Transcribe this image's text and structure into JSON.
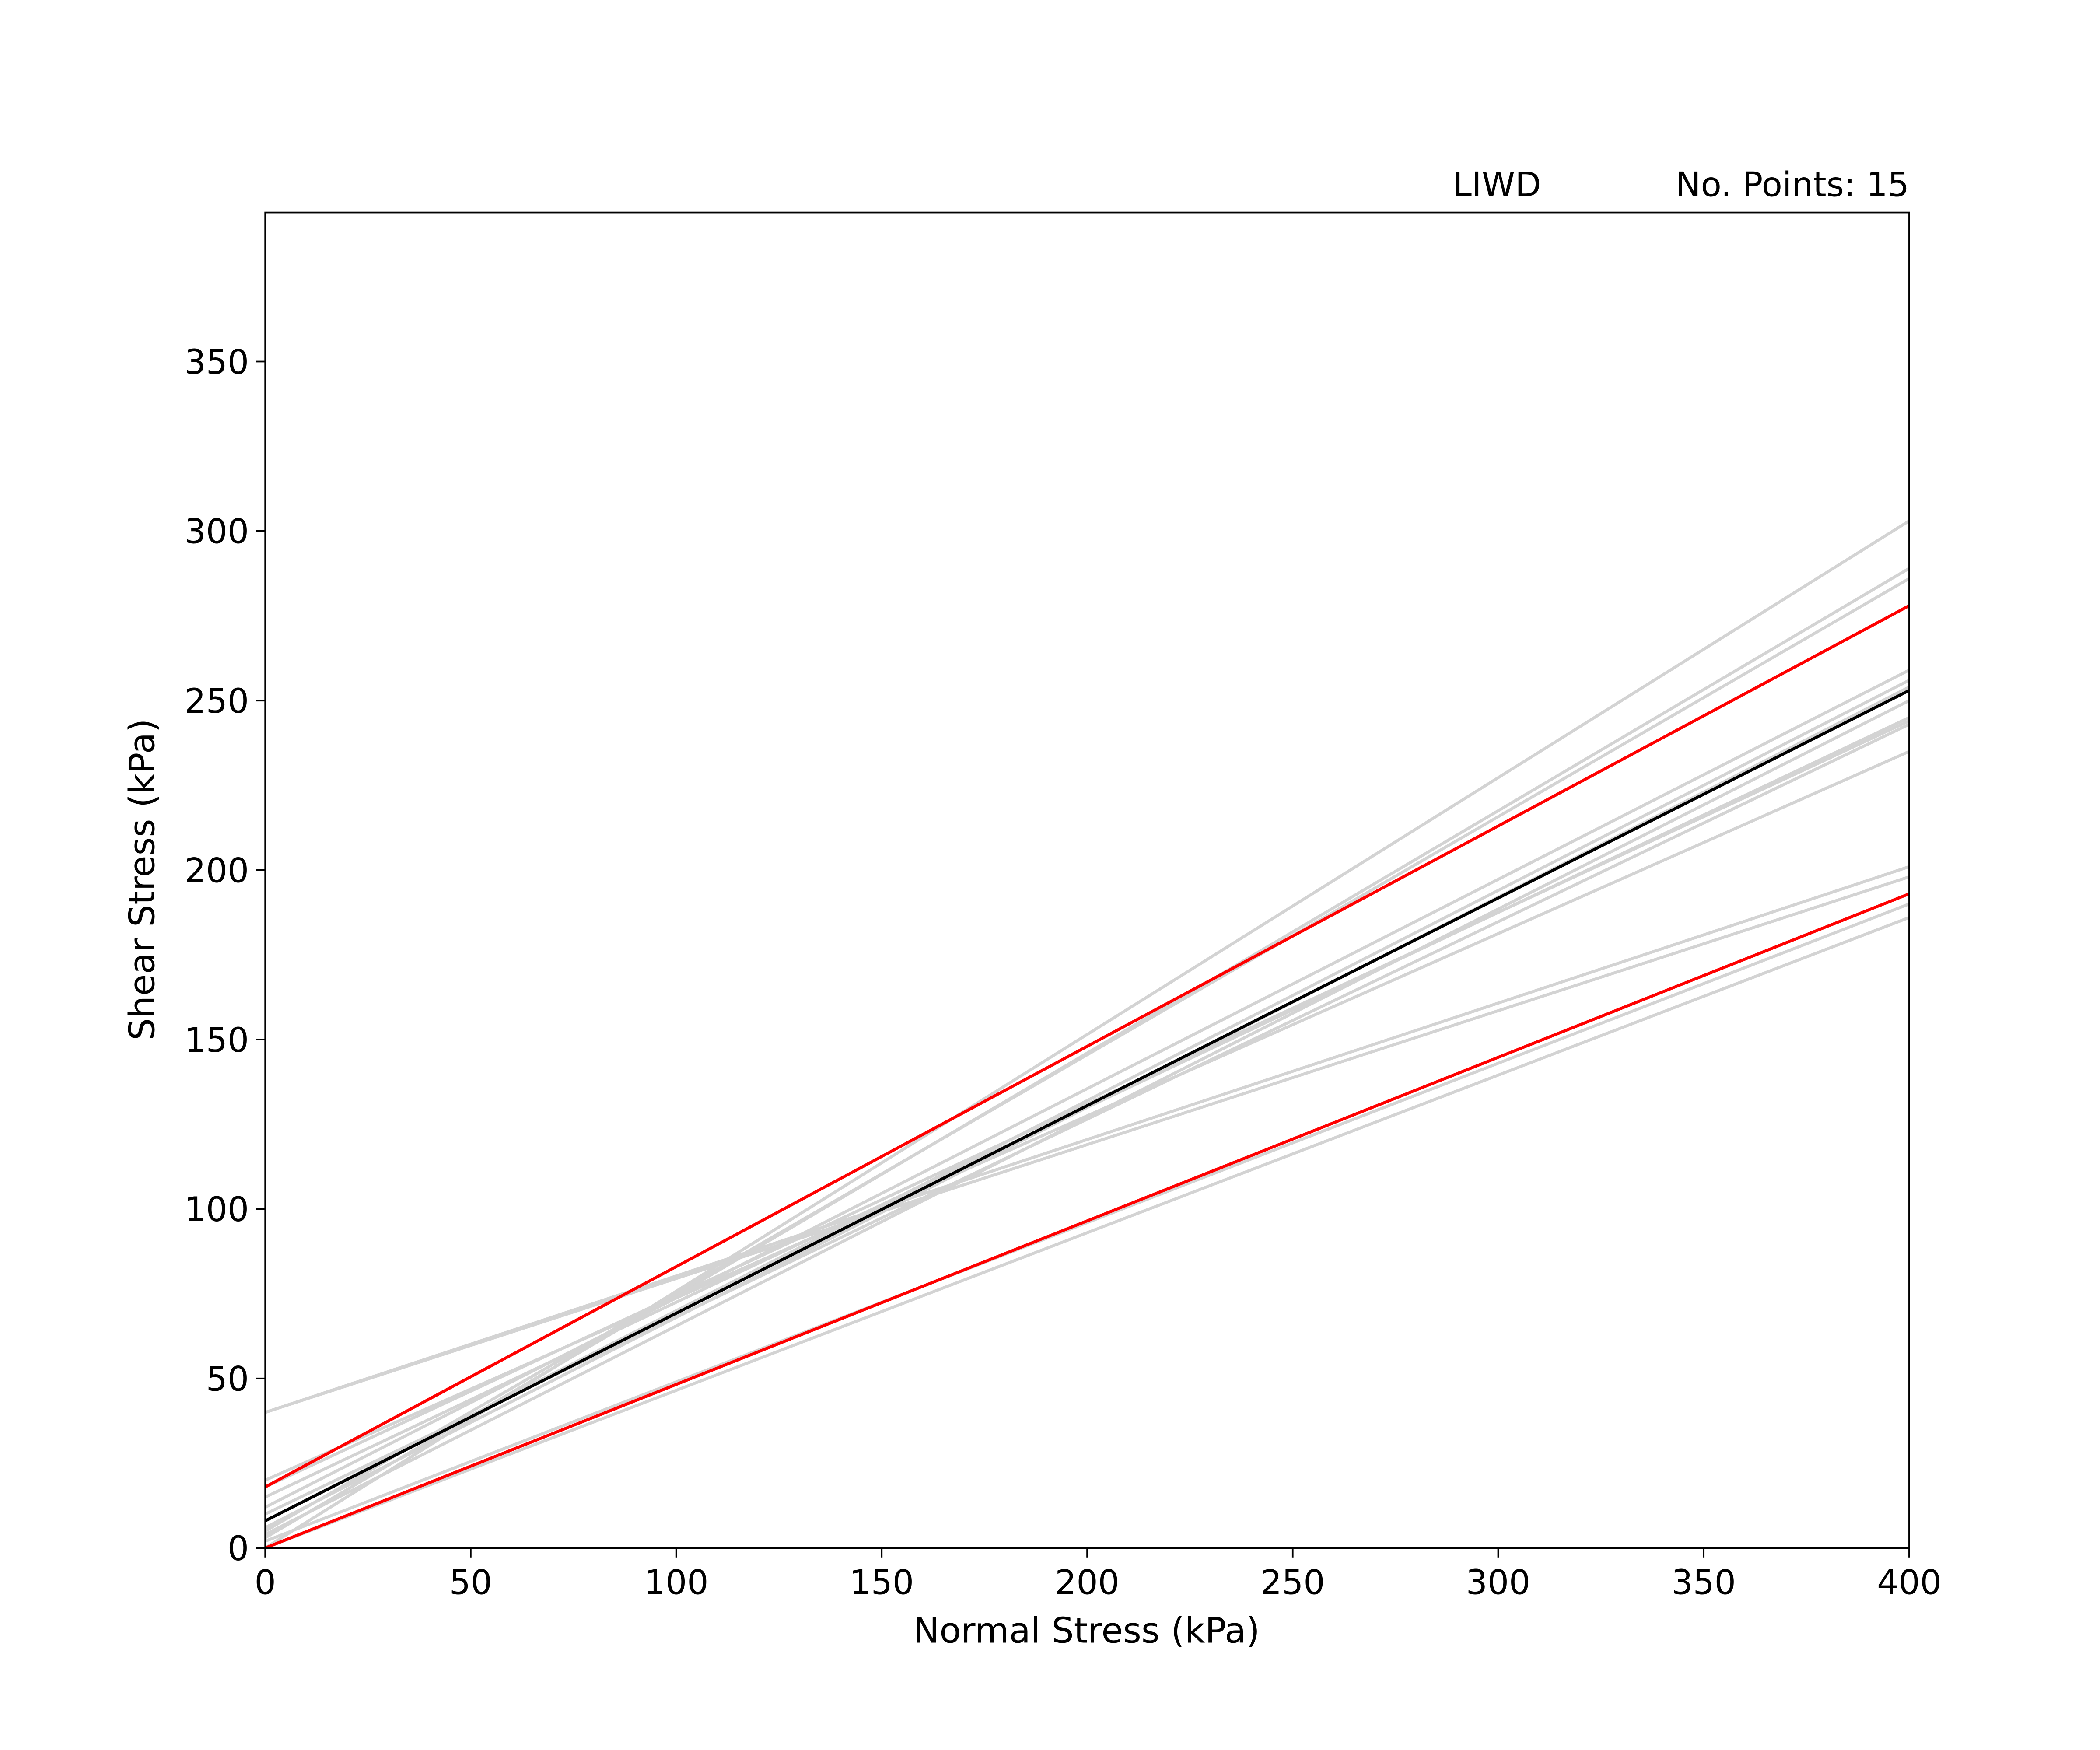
{
  "chart_data": {
    "type": "line",
    "x_label": "Normal Stress (kPa)",
    "y_label": "Shear Stress (kPa)",
    "annotations": [
      "LIWD",
      "No. Points: 15"
    ],
    "x": [
      0,
      400
    ],
    "xlim": [
      0,
      400
    ],
    "ylim": [
      0,
      394
    ],
    "xticks": [
      0,
      50,
      100,
      150,
      200,
      250,
      300,
      350,
      400
    ],
    "yticks": [
      0,
      50,
      100,
      150,
      200,
      250,
      300,
      350
    ],
    "grid": false,
    "series": [
      {
        "color": "#d3d3d3",
        "values": [
          0,
          303
        ]
      },
      {
        "color": "#d3d3d3",
        "values": [
          3,
          289
        ]
      },
      {
        "color": "#d3d3d3",
        "values": [
          5,
          286
        ]
      },
      {
        "color": "#d3d3d3",
        "values": [
          12,
          259
        ]
      },
      {
        "color": "#d3d3d3",
        "values": [
          8,
          256
        ]
      },
      {
        "color": "#d3d3d3",
        "values": [
          6,
          254
        ]
      },
      {
        "color": "#d3d3d3",
        "values": [
          4,
          250
        ]
      },
      {
        "color": "#d3d3d3",
        "values": [
          15,
          245
        ]
      },
      {
        "color": "#d3d3d3",
        "values": [
          10,
          243
        ]
      },
      {
        "color": "#d3d3d3",
        "values": [
          20,
          235
        ]
      },
      {
        "color": "#d3d3d3",
        "values": [
          40,
          201
        ]
      },
      {
        "color": "#d3d3d3",
        "values": [
          40,
          198
        ]
      },
      {
        "color": "#d3d3d3",
        "values": [
          2,
          190
        ]
      },
      {
        "color": "#d3d3d3",
        "values": [
          0,
          186
        ]
      },
      {
        "color": "#d3d3d3",
        "values": [
          18,
          244
        ]
      },
      {
        "color": "#ff0000",
        "values": [
          18,
          278
        ]
      },
      {
        "color": "#ff0000",
        "values": [
          0,
          193
        ]
      },
      {
        "color": "#000000",
        "values": [
          8,
          253
        ]
      }
    ]
  }
}
